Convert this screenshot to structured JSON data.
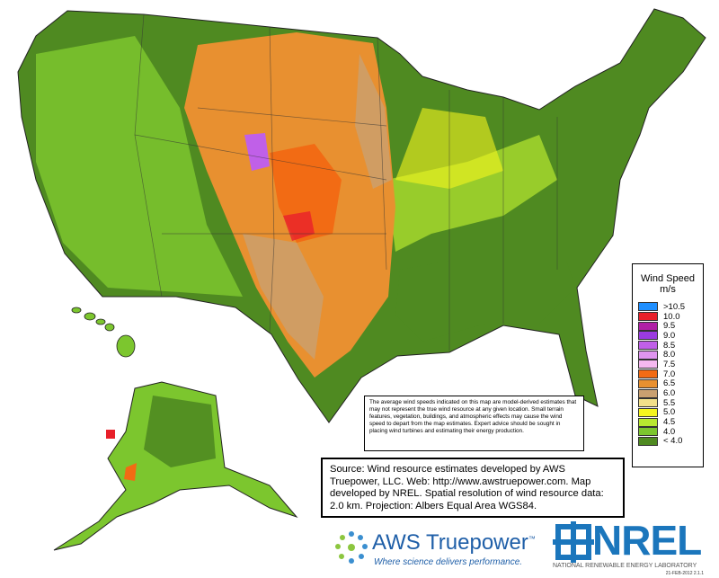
{
  "legend": {
    "title": "Wind Speed",
    "unit": "m/s",
    "items": [
      {
        "label": ">10.5",
        "color": "#1f8fff"
      },
      {
        "label": "10.0",
        "color": "#e8202a"
      },
      {
        "label": "9.5",
        "color": "#b01fa6"
      },
      {
        "label": "9.0",
        "color": "#9b3be0"
      },
      {
        "label": "8.5",
        "color": "#c060e8"
      },
      {
        "label": "8.0",
        "color": "#e095f0"
      },
      {
        "label": "7.5",
        "color": "#f5b8f0"
      },
      {
        "label": "7.0",
        "color": "#f26b14"
      },
      {
        "label": "6.5",
        "color": "#e89030"
      },
      {
        "label": "6.0",
        "color": "#c9a070"
      },
      {
        "label": "5.5",
        "color": "#f2e08a"
      },
      {
        "label": "5.0",
        "color": "#f5f51e"
      },
      {
        "label": "4.5",
        "color": "#b8e830"
      },
      {
        "label": "4.0",
        "color": "#7cc62e"
      },
      {
        "label": "< 4.0",
        "color": "#4f8a21"
      }
    ]
  },
  "disclaimer": "The average wind speeds indicated on this map are model-derived estimates that may not represent the true wind resource at any given location. Small terrain features, vegetation, buildings, and atmospheric effects may cause the wind speed to depart from the map estimates. Expert advice should be sought in placing wind turbines and estimating their energy production.",
  "source": "Source: Wind resource estimates developed by AWS Truepower, LLC. Web: http://www.awstruepower.com. Map developed by NREL. Spatial resolution of wind resource data: 2.0 km. Projection: Albers Equal Area WGS84.",
  "logos": {
    "aws_name": "AWS Truepower",
    "aws_tm": "™",
    "aws_tagline": "Where science delivers performance.",
    "nrel_name": "NREL",
    "nrel_full": "NATIONAL RENEWABLE ENERGY LABORATORY",
    "stamp": "21-FEB-2012 2.1.1"
  }
}
